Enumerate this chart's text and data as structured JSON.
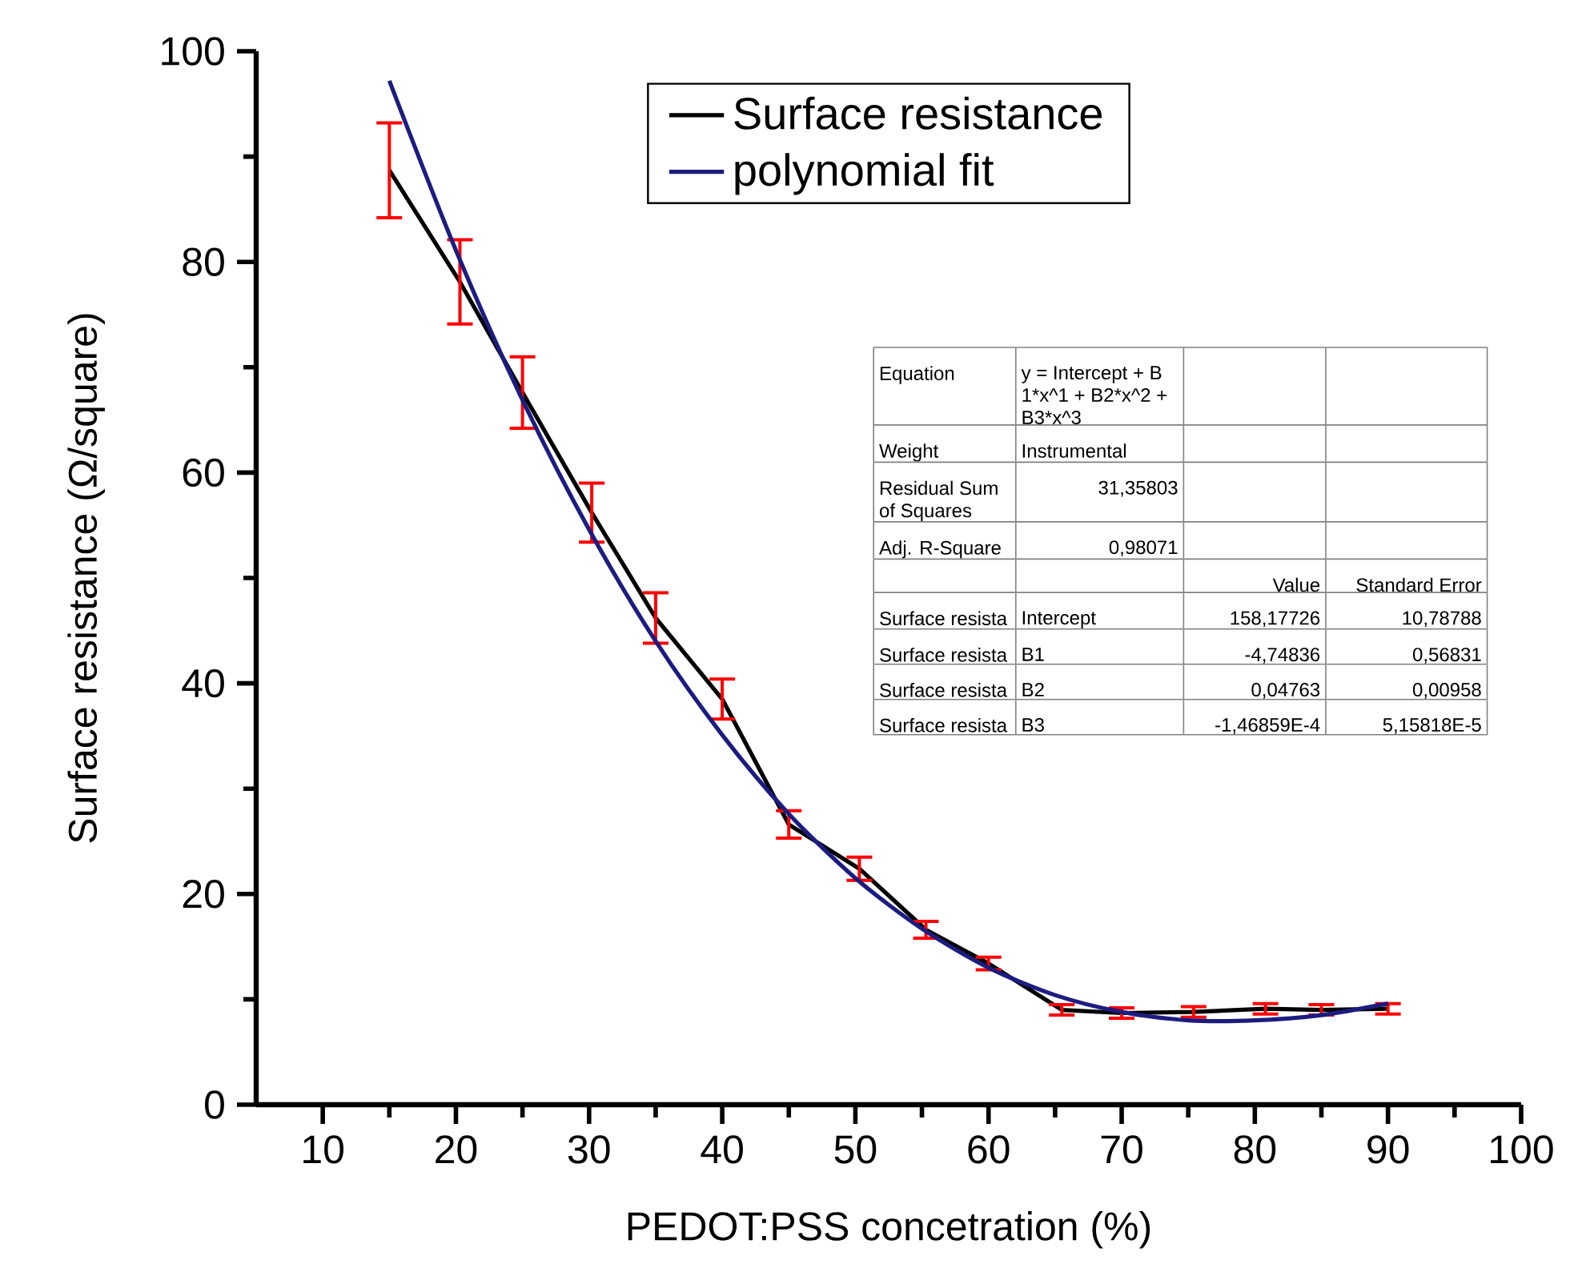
{
  "chart_data": {
    "type": "line",
    "xlabel": "PEDOT:PSS concetration (%)",
    "ylabel": "Surface resistance (Ω/square)",
    "xlim": [
      5,
      100
    ],
    "xticks": [
      10,
      20,
      30,
      40,
      50,
      60,
      70,
      80,
      90,
      100
    ],
    "ylim": [
      0,
      100
    ],
    "yticks": [
      0,
      20,
      40,
      60,
      80,
      100
    ],
    "legend": "top",
    "series": [
      {
        "name": "Surface resistance",
        "color": "#000000",
        "x": [
          15,
          20.3,
          25,
          30.2,
          35,
          40,
          45,
          50.3,
          55.3,
          60,
          65.5,
          70,
          75.4,
          80.8,
          85,
          90
        ],
        "values": [
          88.7,
          78.1,
          67.6,
          56.2,
          46.2,
          38.5,
          26.6,
          22.4,
          16.6,
          13.4,
          9.0,
          8.7,
          8.8,
          9.1,
          9.0,
          9.1
        ],
        "errors": [
          4.5,
          4,
          3.4,
          2.8,
          2.4,
          1.9,
          1.3,
          1.1,
          0.8,
          0.6,
          0.5,
          0.5,
          0.5,
          0.5,
          0.5,
          0.5
        ]
      },
      {
        "name": "polynomial fit",
        "type": "line",
        "color": "#1c1c80",
        "x": [
          15,
          20,
          25,
          30,
          35,
          40,
          45,
          50,
          55,
          60,
          65,
          70,
          75,
          80,
          85,
          90
        ],
        "values": [
          97.2,
          81.1,
          66.9,
          54.6,
          44.0,
          35.1,
          27.6,
          21.5,
          16.7,
          13.0,
          10.4,
          8.8,
          8.0,
          8.0,
          8.5,
          9.6
        ]
      }
    ],
    "annotations": [
      "Equation",
      "y = Intercept + B 1*x^1 + B2*x^2 + B3*x^3",
      "Weight",
      "Instrumental",
      "Residual Sum of Squares",
      "31,35803",
      "Adj. R-Square",
      "0,98071",
      "Value",
      "Standard Error",
      "Surface resista",
      "Intercept",
      "158,17726",
      "10,78788",
      "Surface resista",
      "B1",
      "-4,74836",
      "0,56831",
      "Surface resista",
      "B2",
      "0,04763",
      "0,00958",
      "Surface resista",
      "B3",
      "-1,46859E-4",
      "5,15818E-5"
    ]
  }
}
